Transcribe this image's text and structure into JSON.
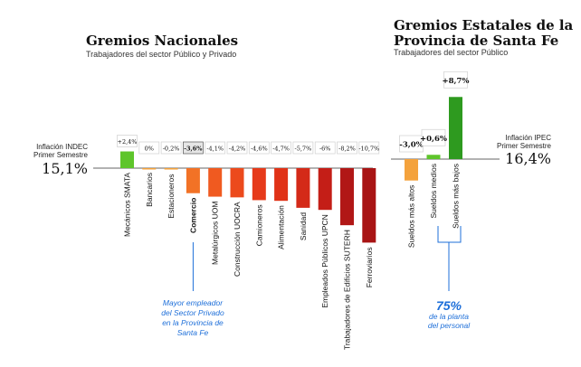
{
  "chart_data": [
    {
      "type": "bar",
      "title": "Gremios Nacionales",
      "subtitle": "Trabajadores del sector Público y Privado",
      "reference": {
        "label": "Inflación INDEC\nPrimer Semestre",
        "value_label": "15,1%",
        "value": 15.1
      },
      "categories": [
        "Mecánicos SMATA",
        "Bancarios",
        "Estacioneros",
        "Comercio",
        "Metalúrgicos UOM",
        "Construcción UOCRA",
        "Camioneros",
        "Alimentación",
        "Sanidad",
        "Empleados Públicos UPCN",
        "Trabajadores de Edificios SUTERH",
        "Ferroviarios"
      ],
      "values": [
        2.4,
        0,
        -0.2,
        -3.6,
        -4.1,
        -4.2,
        -4.6,
        -4.7,
        -5.7,
        -6,
        -8.2,
        -10.7
      ],
      "value_labels": [
        "+2,4%",
        "0%",
        "-0,2%",
        "-3,6%",
        "-4,1%",
        "-4,2%",
        "-4,6%",
        "-4,7%",
        "-5,7%",
        "-6%",
        "-8,2%",
        "-10,7%"
      ],
      "colors": [
        "#5ec52b",
        "#f4a23c",
        "#f4a23c",
        "#f27226",
        "#f05a20",
        "#ec4a1c",
        "#e63a1a",
        "#e03217",
        "#d42a18",
        "#c41e17",
        "#b11716",
        "#a81414"
      ],
      "highlight_index": 3,
      "annotation": "Mayor empleador\ndel Sector Privado\nen la Provincia de\nSanta Fe"
    },
    {
      "type": "bar",
      "title": "Gremios Estatales de la\nProvincia de Santa Fe",
      "subtitle": "Trabajadores del sector Público",
      "reference": {
        "label": "Inflación IPEC\nPrimer Semestre",
        "value_label": "16,4%",
        "value": 16.4
      },
      "categories": [
        "Sueldos más altos",
        "Sueldos medios",
        "Sueldos más bajos"
      ],
      "values": [
        -3.0,
        0.6,
        8.7
      ],
      "value_labels": [
        "-3,0%",
        "+0,6%",
        "+8,7%"
      ],
      "colors": [
        "#f4a23c",
        "#5ec52b",
        "#2e9a1f"
      ],
      "annotation_value": "75%",
      "annotation": "de la planta\ndel personal"
    }
  ]
}
